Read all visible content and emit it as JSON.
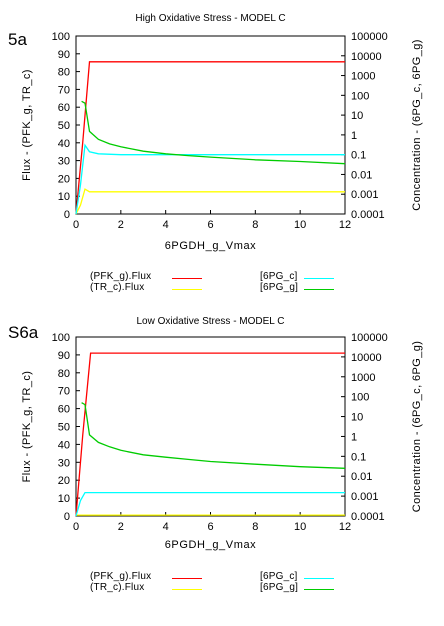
{
  "panels": [
    {
      "label": "5a",
      "chart_data": {
        "type": "line",
        "title": "High Oxidative Stress - MODEL C",
        "xlabel": "6PGDH_g_Vmax",
        "ylabel_left": "Flux - (PFK_g, TR_c)",
        "ylabel_right": "Concentration - (6PG_c, 6PG_g)",
        "xlim": [
          0,
          12
        ],
        "ylim_left": [
          0,
          100
        ],
        "ylim_right": [
          0.0001,
          100000
        ],
        "yscale_right": "log",
        "x_ticks": [
          "0",
          "2",
          "4",
          "6",
          "8",
          "10",
          "12"
        ],
        "y_ticks_left": [
          "0",
          "10",
          "20",
          "30",
          "40",
          "50",
          "60",
          "70",
          "80",
          "90",
          "100"
        ],
        "y_ticks_right": [
          "0.0001",
          "0.001",
          "0.01",
          "0.1",
          "1",
          "10",
          "100",
          "1000",
          "10000",
          "100000"
        ],
        "grid": false,
        "series": [
          {
            "name": "(PFK_g).Flux",
            "axis": "left",
            "color": "#ff0000",
            "x": [
              0,
              0.3,
              0.6,
              1,
              2,
              4,
              6,
              8,
              10,
              12
            ],
            "y": [
              0,
              40,
              85.5,
              85.5,
              85.5,
              85.5,
              85.5,
              85.5,
              85.5,
              85.5
            ]
          },
          {
            "name": "(TR_c).Flux",
            "axis": "left",
            "color": "#ffff00",
            "x": [
              0,
              0.2,
              0.4,
              0.6,
              1,
              2,
              4,
              6,
              8,
              10,
              12
            ],
            "y": [
              0,
              5,
              14,
              12.5,
              12.5,
              12.5,
              12.5,
              12.5,
              12.5,
              12.5,
              12.5
            ]
          },
          {
            "name": "[6PG_c]",
            "axis": "right",
            "color": "#00ffff",
            "x": [
              0,
              0.2,
              0.4,
              0.6,
              1,
              2,
              4,
              6,
              8,
              10,
              12
            ],
            "y": [
              0.0001,
              0.003,
              0.3,
              0.14,
              0.11,
              0.1,
              0.1,
              0.1,
              0.1,
              0.1,
              0.1
            ]
          },
          {
            "name": "[6PG_g]",
            "axis": "right",
            "color": "#00cc00",
            "x": [
              0.25,
              0.4,
              0.6,
              1,
              1.5,
              2,
              3,
              4,
              5,
              6,
              8,
              10,
              12
            ],
            "y": [
              50,
              40,
              1.5,
              0.6,
              0.35,
              0.25,
              0.15,
              0.11,
              0.09,
              0.075,
              0.055,
              0.045,
              0.035
            ]
          }
        ]
      }
    },
    {
      "label": "S6a",
      "chart_data": {
        "type": "line",
        "title": "Low Oxidative Stress - MODEL C",
        "xlabel": "6PGDH_g_Vmax",
        "ylabel_left": "Flux - (PFK_g, TR_c)",
        "ylabel_right": "Concentration - (6PG_c, 6PG_g)",
        "xlim": [
          0,
          12
        ],
        "ylim_left": [
          0,
          100
        ],
        "ylim_right": [
          0.0001,
          100000
        ],
        "yscale_right": "log",
        "x_ticks": [
          "0",
          "2",
          "4",
          "6",
          "8",
          "10",
          "12"
        ],
        "y_ticks_left": [
          "0",
          "10",
          "20",
          "30",
          "40",
          "50",
          "60",
          "70",
          "80",
          "90",
          "100"
        ],
        "y_ticks_right": [
          "0.0001",
          "0.001",
          "0.01",
          "0.1",
          "1",
          "10",
          "100",
          "1000",
          "10000",
          "100000"
        ],
        "grid": false,
        "series": [
          {
            "name": "(PFK_g).Flux",
            "axis": "left",
            "color": "#ff0000",
            "x": [
              0,
              0.3,
              0.65,
              1,
              2,
              4,
              6,
              8,
              10,
              12
            ],
            "y": [
              0,
              45,
              91,
              91,
              91,
              91,
              91,
              91,
              91,
              91
            ]
          },
          {
            "name": "(TR_c).Flux",
            "axis": "left",
            "color": "#ffff00",
            "x": [
              0,
              0.5,
              1,
              2,
              4,
              6,
              8,
              10,
              12
            ],
            "y": [
              0.5,
              0.5,
              0.5,
              0.5,
              0.5,
              0.5,
              0.5,
              0.5,
              0.5
            ]
          },
          {
            "name": "[6PG_c]",
            "axis": "right",
            "color": "#00ffff",
            "x": [
              0,
              0.2,
              0.4,
              0.6,
              1,
              2,
              4,
              6,
              8,
              10,
              12
            ],
            "y": [
              0.0001,
              0.0006,
              0.0015,
              0.0015,
              0.0015,
              0.0015,
              0.0015,
              0.0015,
              0.0015,
              0.0015,
              0.0015
            ]
          },
          {
            "name": "[6PG_g]",
            "axis": "right",
            "color": "#00cc00",
            "x": [
              0.25,
              0.4,
              0.6,
              1,
              1.5,
              2,
              3,
              4,
              5,
              6,
              8,
              10,
              12
            ],
            "y": [
              50,
              40,
              1.2,
              0.5,
              0.3,
              0.2,
              0.12,
              0.09,
              0.07,
              0.055,
              0.04,
              0.03,
              0.025
            ]
          }
        ]
      }
    }
  ]
}
